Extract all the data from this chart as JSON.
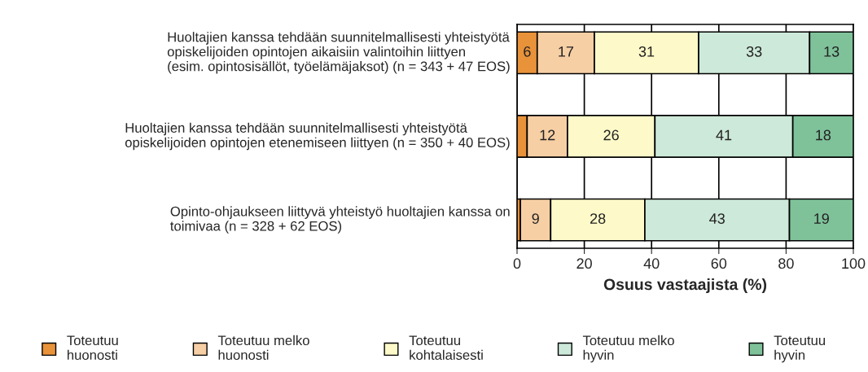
{
  "chart_data": {
    "type": "bar",
    "orientation": "horizontal",
    "stacked": true,
    "xlabel": "Osuus vastaajista (%)",
    "categories": [
      "Huoltajien kanssa tehdään suunnitelmallisesti yhteistyötä\nopiskelijoiden opintojen aikaisiin valintoihin liittyen\n(esim. opintosisällöt, työelämäjaksot) (n = 343 + 47 EOS)",
      "Huoltajien kanssa tehdään suunnitelmallisesti yhteistyötä\nopiskelijoiden opintojen etenemiseen liittyen (n = 350 + 40 EOS)",
      "Opinto-ohjaukseen liittyvä yhteistyö huoltajien kanssa on\ntoimivaa (n = 328 + 62 EOS)"
    ],
    "series": [
      {
        "name": "Toteutuu\nhuonosti",
        "color": "#e8923a",
        "values": [
          6,
          3,
          1
        ],
        "value_labels": [
          "6",
          null,
          null
        ]
      },
      {
        "name": "Toteutuu melko\nhuonosti",
        "color": "#f7cfa4",
        "values": [
          17,
          12,
          9
        ],
        "value_labels": [
          "17",
          "12",
          "9"
        ]
      },
      {
        "name": "Toteutuu\nkohtalaisesti",
        "color": "#fdf9c8",
        "values": [
          31,
          26,
          28
        ],
        "value_labels": [
          "31",
          "26",
          "28"
        ]
      },
      {
        "name": "Toteutuu melko\nhyvin",
        "color": "#cde9d9",
        "values": [
          33,
          41,
          43
        ],
        "value_labels": [
          "33",
          "41",
          "43"
        ]
      },
      {
        "name": "Toteutuu\nhyvin",
        "color": "#7fc29a",
        "values": [
          13,
          18,
          19
        ],
        "value_labels": [
          "13",
          "18",
          "19"
        ]
      }
    ],
    "xlim": [
      0,
      100
    ],
    "xticks": [
      0,
      20,
      40,
      60,
      80,
      100
    ],
    "grid": "x",
    "legend": "bottom"
  }
}
